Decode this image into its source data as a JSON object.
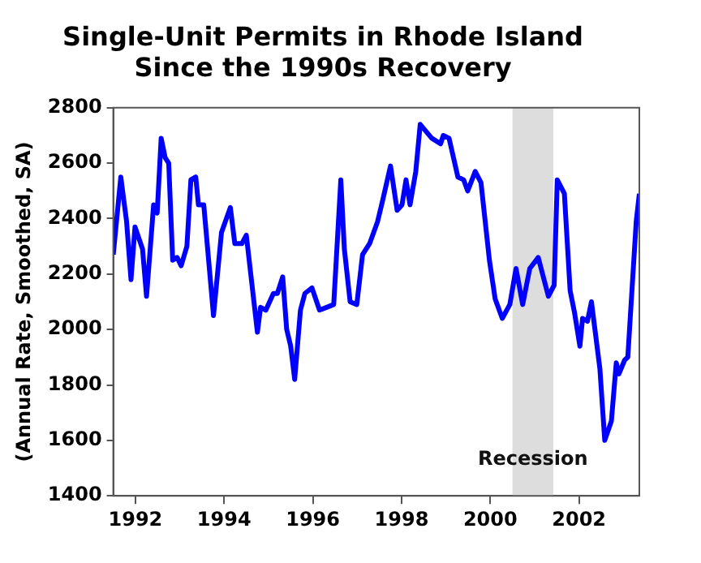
{
  "chart_data": {
    "type": "line",
    "title": "Single-Unit Permits in Rhode Island\nSince the 1990s Recovery",
    "ylabel": "(Annual Rate, Smoothed, SA)",
    "x": [
      1992.0,
      1992.17,
      1992.3,
      1992.4,
      1992.49,
      1992.66,
      1992.75,
      1992.91,
      1992.99,
      1993.08,
      1993.17,
      1993.25,
      1993.34,
      1993.44,
      1993.53,
      1993.66,
      1993.75,
      1993.86,
      1993.92,
      1994.04,
      1994.26,
      1994.44,
      1994.64,
      1994.74,
      1994.9,
      1995.0,
      1995.25,
      1995.32,
      1995.44,
      1995.61,
      1995.7,
      1995.82,
      1995.91,
      1996.0,
      1996.09,
      1996.22,
      1996.32,
      1996.48,
      1996.65,
      1996.81,
      1996.97,
      1997.13,
      1997.21,
      1997.34,
      1997.49,
      1997.62,
      1997.78,
      1997.96,
      1998.08,
      1998.25,
      1998.4,
      1998.51,
      1998.6,
      1998.69,
      1998.82,
      1998.92,
      1999.18,
      1999.38,
      1999.44,
      1999.57,
      1999.77,
      1999.9,
      1999.99,
      2000.16,
      2000.29,
      2000.48,
      2000.61,
      2000.77,
      2000.94,
      2001.08,
      2001.23,
      2001.39,
      2001.58,
      2001.81,
      2001.94,
      2002.01,
      2002.17,
      2002.3,
      2002.4,
      2002.52,
      2002.58,
      2002.69,
      2002.78,
      2002.97,
      2003.08,
      2003.23,
      2003.34,
      2003.4,
      2003.53,
      2003.6,
      2003.79,
      2003.86
    ],
    "series": [
      {
        "color": "#0000ff",
        "values": [
          2270,
          2550,
          2390,
          2180,
          2370,
          2290,
          2120,
          2450,
          2420,
          2690,
          2620,
          2600,
          2250,
          2260,
          2230,
          2300,
          2540,
          2550,
          2450,
          2450,
          2050,
          2350,
          2440,
          2310,
          2310,
          2340,
          1990,
          2080,
          2070,
          2130,
          2130,
          2190,
          2000,
          1940,
          1820,
          2070,
          2130,
          2150,
          2070,
          2080,
          2090,
          2540,
          2290,
          2100,
          2090,
          2270,
          2310,
          2390,
          2470,
          2590,
          2430,
          2450,
          2540,
          2450,
          2570,
          2740,
          2690,
          2670,
          2700,
          2690,
          2550,
          2540,
          2500,
          2570,
          2530,
          2250,
          2110,
          2040,
          2090,
          2220,
          2090,
          2220,
          2260,
          2120,
          2160,
          2540,
          2490,
          2140,
          2060,
          1940,
          2040,
          2030,
          2100,
          1860,
          1600,
          1670,
          1880,
          1840,
          1890,
          1900,
          2390,
          2490
        ]
      }
    ],
    "xlim": [
      1992.0,
      2003.86
    ],
    "xticks": [
      {
        "value": 1992.5,
        "label": "1992"
      },
      {
        "value": 1994.5,
        "label": "1994"
      },
      {
        "value": 1996.5,
        "label": "1996"
      },
      {
        "value": 1998.5,
        "label": "1998"
      },
      {
        "value": 2000.5,
        "label": "2000"
      },
      {
        "value": 2002.5,
        "label": "2002"
      }
    ],
    "ylim": [
      1400,
      2800
    ],
    "yticks": [
      1400,
      1600,
      1800,
      2000,
      2200,
      2400,
      2600,
      2800
    ],
    "bands": [
      {
        "axis": "x",
        "from": 2001.0,
        "to": 2001.92,
        "label": "Recession",
        "color": "#dddddd"
      }
    ],
    "grid": false,
    "legend": false,
    "marker": "none",
    "line_style": "solid"
  }
}
